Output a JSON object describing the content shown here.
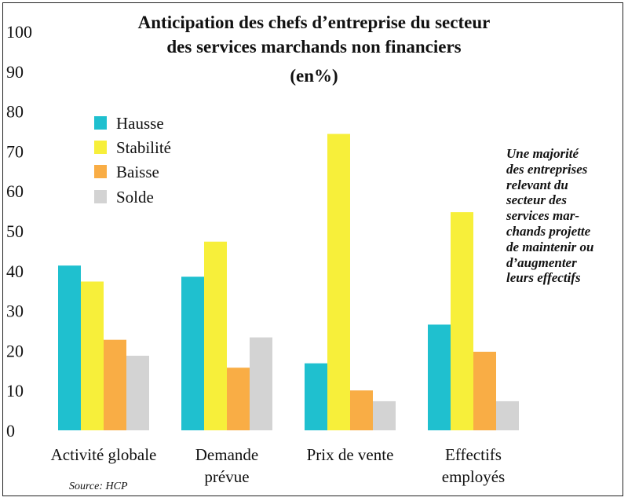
{
  "title_lines": [
    "Anticipation des chefs d’entreprise du secteur",
    "des services marchands non financiers",
    "(en%)"
  ],
  "note_lines": [
    "Une majorité",
    "des entreprises",
    "relevant du",
    "secteur des",
    "services mar-",
    "chands projette",
    "de maintenir ou",
    "d’augmenter",
    "leurs effectifs"
  ],
  "source": "Source: HCP",
  "colors": {
    "Hausse": "#1fc0cf",
    "Stabilité": "#f7ef3a",
    "Baisse": "#f9ad45",
    "Solde": "#d3d3d3"
  },
  "chart_data": {
    "type": "bar",
    "title": "Anticipation des chefs d’entreprise du secteur des services marchands non financiers (en%)",
    "categories": [
      [
        "Activité globale"
      ],
      [
        "Demande",
        "prévue"
      ],
      [
        "Prix de vente"
      ],
      [
        "Effectifs",
        "employés"
      ]
    ],
    "series": [
      {
        "name": "Hausse",
        "values": [
          41.3,
          38.5,
          16.8,
          26.5
        ]
      },
      {
        "name": "Stabilité",
        "values": [
          37.3,
          47.3,
          74.3,
          54.7
        ]
      },
      {
        "name": "Baisse",
        "values": [
          22.7,
          15.7,
          10.0,
          19.7
        ]
      },
      {
        "name": "Solde",
        "values": [
          18.7,
          23.3,
          7.3,
          7.3
        ]
      }
    ],
    "yticks": [
      0,
      10,
      20,
      30,
      40,
      50,
      60,
      70,
      80,
      90,
      100
    ],
    "ylim": [
      0,
      100
    ],
    "xlabel": "",
    "ylabel": "",
    "grid": false,
    "legend_position": "top-left"
  }
}
